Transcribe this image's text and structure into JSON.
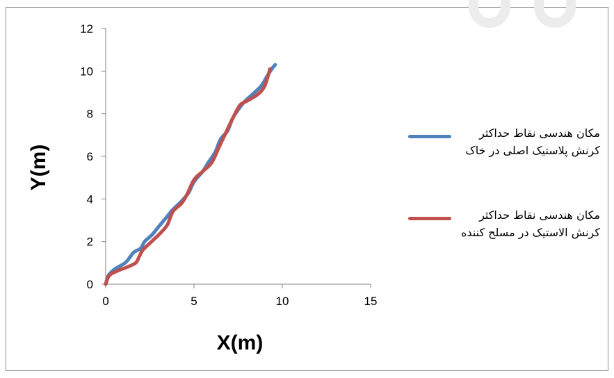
{
  "chart_data": {
    "type": "line",
    "title": "",
    "xlabel": "X(m)",
    "ylabel": "Y(m)",
    "xlim": [
      0,
      15
    ],
    "ylim": [
      0,
      12
    ],
    "xticks": [
      0,
      5,
      10,
      15
    ],
    "yticks": [
      0,
      2,
      4,
      6,
      8,
      10,
      12
    ],
    "x_tick_labels": [
      "0",
      "5",
      "10",
      "15"
    ],
    "y_tick_labels": [
      "0",
      "2",
      "4",
      "6",
      "8",
      "10",
      "12"
    ],
    "grid": false,
    "legend_position": "right",
    "series": [
      {
        "name": "مکان هندسی نقاط حداکثر کرنش پلاستیک اصلی در خاک",
        "color": "#4f81bd",
        "x": [
          0.0,
          0.15,
          0.5,
          1.1,
          1.4,
          1.6,
          2.0,
          2.2,
          2.6,
          3.0,
          3.3,
          3.6,
          3.8,
          4.3,
          4.7,
          5.0,
          5.5,
          5.8,
          6.2,
          6.5,
          6.9,
          7.2,
          7.6,
          7.9,
          8.3,
          8.8,
          9.1,
          9.4,
          9.6
        ],
        "y": [
          0.0,
          0.4,
          0.7,
          1.0,
          1.3,
          1.5,
          1.7,
          2.0,
          2.3,
          2.7,
          3.0,
          3.3,
          3.5,
          3.9,
          4.3,
          4.8,
          5.3,
          5.7,
          6.2,
          6.8,
          7.2,
          7.8,
          8.3,
          8.6,
          8.9,
          9.3,
          9.7,
          10.1,
          10.3
        ]
      },
      {
        "name": "مکان هندسی نقاط حداکثر کرنش الاستیک در مسلح کننده",
        "color": "#c0504d",
        "x": [
          0.0,
          0.2,
          0.6,
          1.2,
          1.7,
          1.9,
          2.1,
          2.6,
          3.1,
          3.5,
          3.8,
          4.3,
          4.6,
          5.0,
          5.5,
          6.0,
          6.4,
          6.8,
          7.2,
          7.6,
          8.0,
          8.6,
          9.0,
          9.3
        ],
        "y": [
          0.0,
          0.4,
          0.6,
          0.8,
          1.0,
          1.3,
          1.6,
          2.0,
          2.4,
          2.8,
          3.4,
          3.8,
          4.2,
          4.9,
          5.3,
          5.7,
          6.4,
          7.1,
          7.8,
          8.4,
          8.6,
          8.9,
          9.3,
          10.1
        ]
      }
    ]
  }
}
